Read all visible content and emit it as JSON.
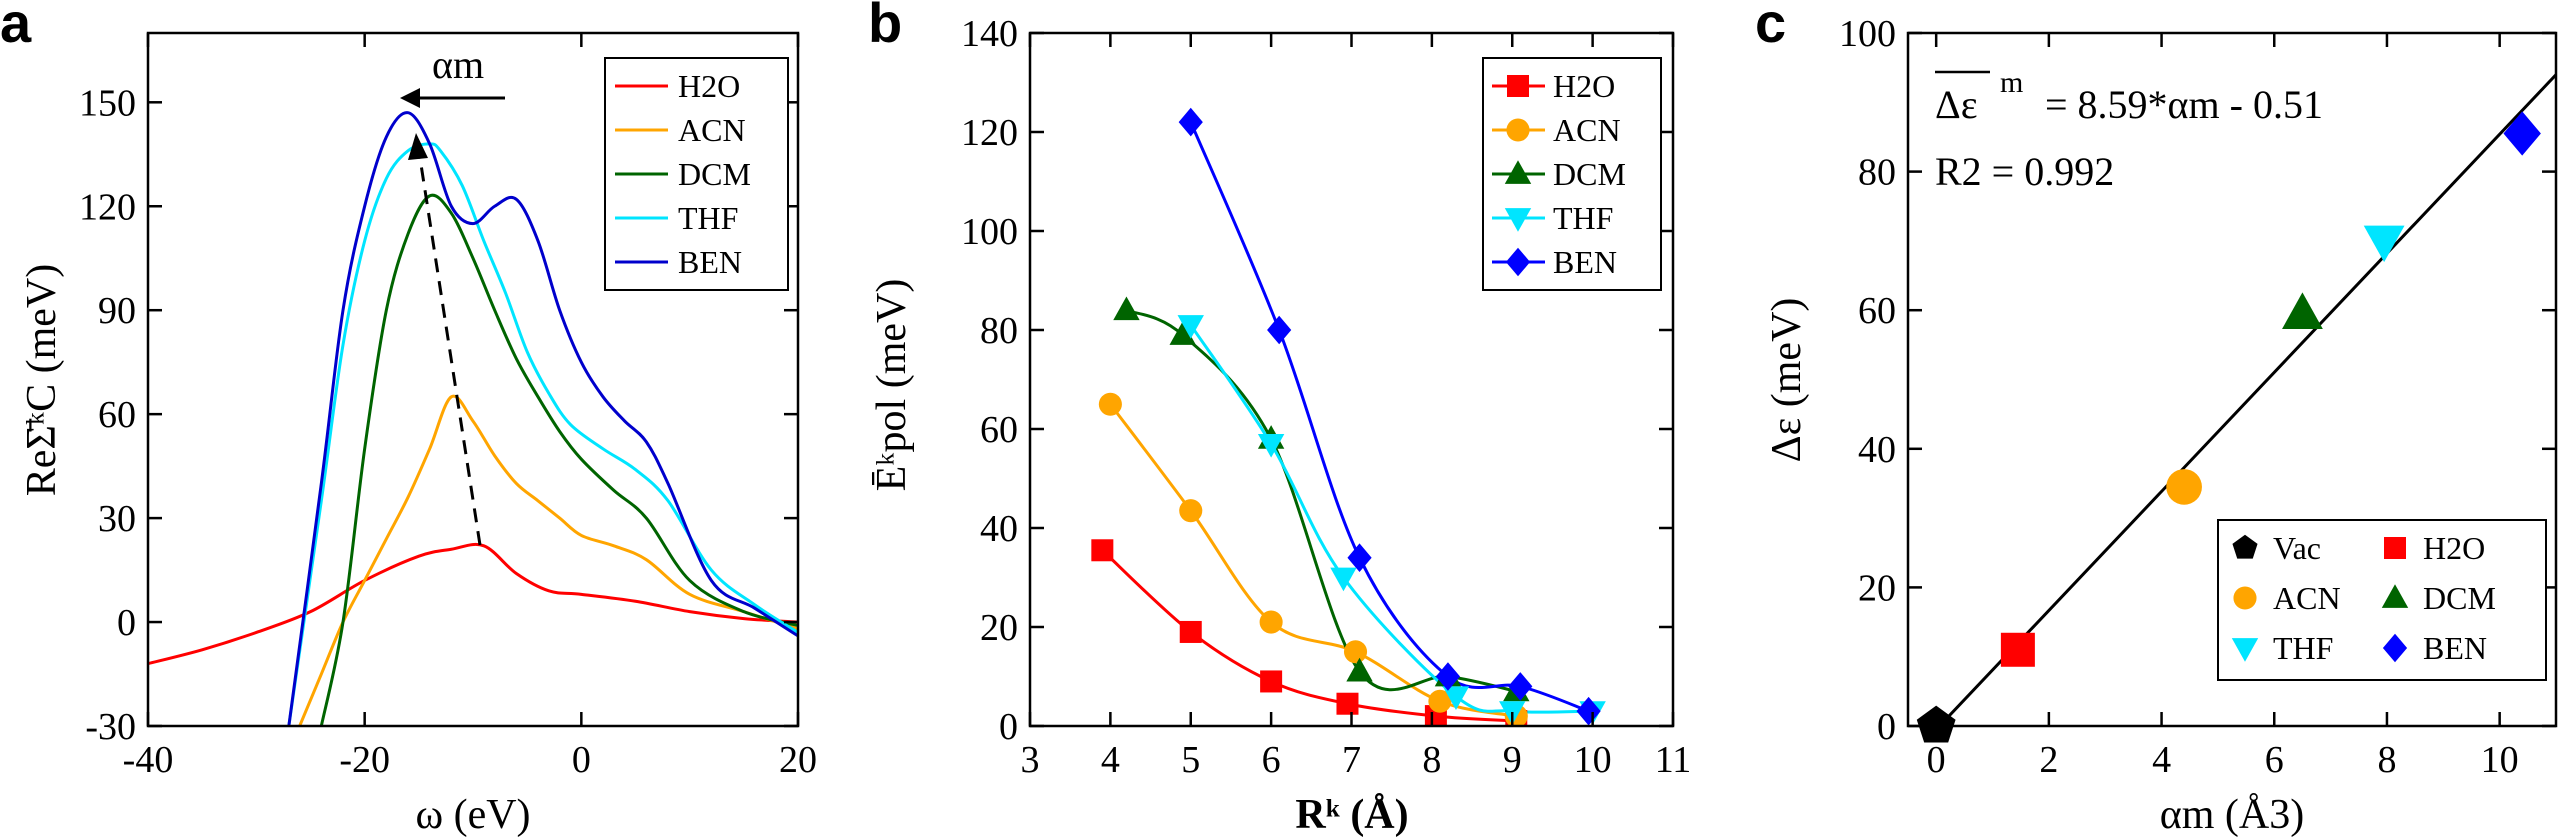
{
  "chart_data": [
    {
      "type": "line",
      "panel": "a",
      "xlabel": "ω  (eV)",
      "ylabel": "ReΣ̄ᵏC  (meV)",
      "xlim": [
        -40,
        20
      ],
      "ylim": [
        -30,
        170
      ],
      "xticks": [
        -40,
        -20,
        0,
        20
      ],
      "yticks": [
        -30,
        0,
        30,
        60,
        90,
        120,
        150
      ],
      "legend_position": "top-right",
      "annotation": "αm",
      "series": [
        {
          "name": "H2O",
          "color": "#ff0000",
          "x": [
            -40,
            -35,
            -30,
            -25,
            -20,
            -15,
            -12,
            -9,
            -6,
            -3,
            0,
            5,
            10,
            15,
            20
          ],
          "y": [
            -12,
            -8,
            -3,
            3,
            12,
            19,
            21,
            22,
            14,
            9,
            8,
            6,
            3,
            1,
            0
          ]
        },
        {
          "name": "ACN",
          "color": "#ffa500",
          "x": [
            -26,
            -24,
            -22,
            -20,
            -18,
            -16,
            -14,
            -12,
            -10,
            -8,
            -6,
            -4,
            -2,
            0,
            3,
            6,
            10,
            15,
            20
          ],
          "y": [
            -30,
            -15,
            0,
            12,
            24,
            36,
            50,
            65,
            58,
            48,
            40,
            35,
            30,
            25,
            22,
            18,
            8,
            3,
            -2
          ]
        },
        {
          "name": "DCM",
          "color": "#006400",
          "x": [
            -24,
            -22,
            -20,
            -18,
            -16,
            -14,
            -12,
            -10,
            -8,
            -6,
            -4,
            -2,
            0,
            3,
            6,
            10,
            15,
            20
          ],
          "y": [
            -30,
            0,
            50,
            90,
            112,
            123,
            118,
            105,
            90,
            76,
            65,
            55,
            47,
            38,
            30,
            12,
            3,
            -1
          ]
        },
        {
          "name": "THF",
          "color": "#00e5ff",
          "x": [
            -27,
            -24,
            -22,
            -20,
            -18,
            -16,
            -14,
            -13,
            -11,
            -9,
            -7,
            -5,
            -3,
            -1,
            2,
            5,
            8,
            12,
            16,
            20
          ],
          "y": [
            -30,
            35,
            80,
            110,
            128,
            136,
            138,
            136,
            126,
            110,
            95,
            78,
            66,
            57,
            50,
            44,
            35,
            15,
            5,
            -3
          ]
        },
        {
          "name": "BEN",
          "color": "#0000cc",
          "x": [
            -27,
            -24,
            -22,
            -20,
            -18,
            -16,
            -14,
            -12,
            -10,
            -8,
            -6,
            -4,
            -2,
            0,
            2,
            4,
            6,
            8,
            12,
            16,
            20
          ],
          "y": [
            -30,
            40,
            90,
            120,
            140,
            147,
            138,
            120,
            115,
            120,
            122,
            110,
            90,
            75,
            65,
            58,
            52,
            40,
            12,
            4,
            -4
          ]
        }
      ]
    },
    {
      "type": "line",
      "panel": "b",
      "xlabel": "Rᵏ (Å)",
      "ylabel": "Ēᵏpol (meV)",
      "xlim": [
        3,
        11
      ],
      "ylim": [
        0,
        140
      ],
      "xticks": [
        3,
        4,
        5,
        6,
        7,
        8,
        9,
        10,
        11
      ],
      "yticks": [
        0,
        20,
        40,
        60,
        80,
        100,
        120,
        140
      ],
      "legend_position": "top-right",
      "series": [
        {
          "name": "H2O",
          "color": "#ff0000",
          "marker": "square",
          "x": [
            3.9,
            5.0,
            6.0,
            6.95,
            8.05,
            9.05
          ],
          "y": [
            35.5,
            19,
            9,
            4.5,
            2,
            1
          ]
        },
        {
          "name": "ACN",
          "color": "#ffa500",
          "marker": "circle",
          "x": [
            4.0,
            5.0,
            6.0,
            7.05,
            8.1,
            9.05
          ],
          "y": [
            65,
            43.5,
            21,
            15,
            5,
            2
          ]
        },
        {
          "name": "DCM",
          "color": "#006400",
          "marker": "triangle-up",
          "x": [
            4.2,
            4.9,
            6.0,
            7.1,
            8.2,
            9.05
          ],
          "y": [
            84,
            79,
            58,
            11,
            10,
            7
          ]
        },
        {
          "name": "THF",
          "color": "#00e5ff",
          "marker": "triangle-down",
          "x": [
            5.0,
            6.0,
            6.9,
            8.3,
            9.0,
            10.0
          ],
          "y": [
            81,
            57,
            30,
            6,
            3,
            3
          ]
        },
        {
          "name": "BEN",
          "color": "#0000ff",
          "marker": "diamond",
          "x": [
            5.0,
            6.1,
            7.1,
            8.2,
            9.1,
            9.95
          ],
          "y": [
            122,
            80,
            34,
            10,
            8,
            3
          ]
        }
      ]
    },
    {
      "type": "scatter",
      "panel": "c",
      "xlabel": "αm (Å3)",
      "ylabel": "Δε (meV)",
      "xlim": [
        -0.5,
        11
      ],
      "ylim": [
        0,
        100
      ],
      "xticks": [
        0,
        2,
        4,
        6,
        8,
        10
      ],
      "yticks": [
        0,
        20,
        40,
        60,
        80,
        100
      ],
      "legend_position": "bottom-right",
      "fit": {
        "slope": 8.59,
        "intercept": -0.51,
        "r2": 0.992
      },
      "fit_equation_left": "Δε",
      "fit_equation_sup": "m",
      "fit_equation_right": "=  8.59*αm - 0.51",
      "r2_label": "R2 = 0.992",
      "series": [
        {
          "name": "Vac",
          "color": "#000000",
          "marker": "pentagon",
          "x": [
            0.0
          ],
          "y": [
            0.0
          ]
        },
        {
          "name": "H2O",
          "color": "#ff0000",
          "marker": "square",
          "x": [
            1.45
          ],
          "y": [
            11
          ]
        },
        {
          "name": "ACN",
          "color": "#ffa500",
          "marker": "circle",
          "x": [
            4.4
          ],
          "y": [
            34.5
          ]
        },
        {
          "name": "DCM",
          "color": "#006400",
          "marker": "triangle-up",
          "x": [
            6.5
          ],
          "y": [
            59.5
          ]
        },
        {
          "name": "THF",
          "color": "#00e5ff",
          "marker": "triangle-down",
          "x": [
            7.95
          ],
          "y": [
            70
          ]
        },
        {
          "name": "BEN",
          "color": "#0000ff",
          "marker": "diamond",
          "x": [
            10.4
          ],
          "y": [
            85.5
          ]
        }
      ]
    }
  ],
  "panel_letters": [
    "a",
    "b",
    "c"
  ]
}
